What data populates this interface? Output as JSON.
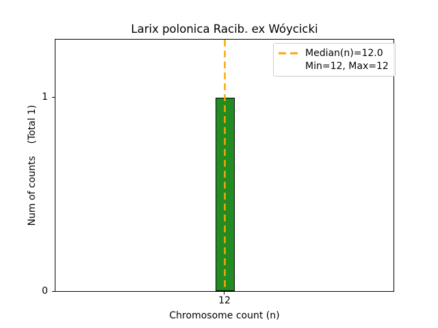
{
  "chart_data": {
    "type": "bar",
    "title": "Larix polonica Racib. ex Wóycicki",
    "xlabel": "Chromosome count (n)",
    "ylabel": "Num of counts    (Total 1)",
    "categories": [
      "12"
    ],
    "values": [
      1
    ],
    "total_counts": 1,
    "xticks": [
      "12"
    ],
    "yticks": [
      "0",
      "1"
    ],
    "ylim": [
      0,
      1.3
    ],
    "grid": false,
    "bar_color": "#228B22",
    "bar_edge_color": "#000000",
    "median_line": {
      "x": 12,
      "median": "12.0",
      "min": "12",
      "max": "12",
      "color": "#FFA500",
      "style": "dashed"
    },
    "legend": {
      "position": "upper-right",
      "entries": [
        {
          "marker": "orange-dashed-line",
          "label": "Median(n)=12.0"
        },
        {
          "marker": "none",
          "label": "Min=12, Max=12"
        }
      ]
    }
  }
}
